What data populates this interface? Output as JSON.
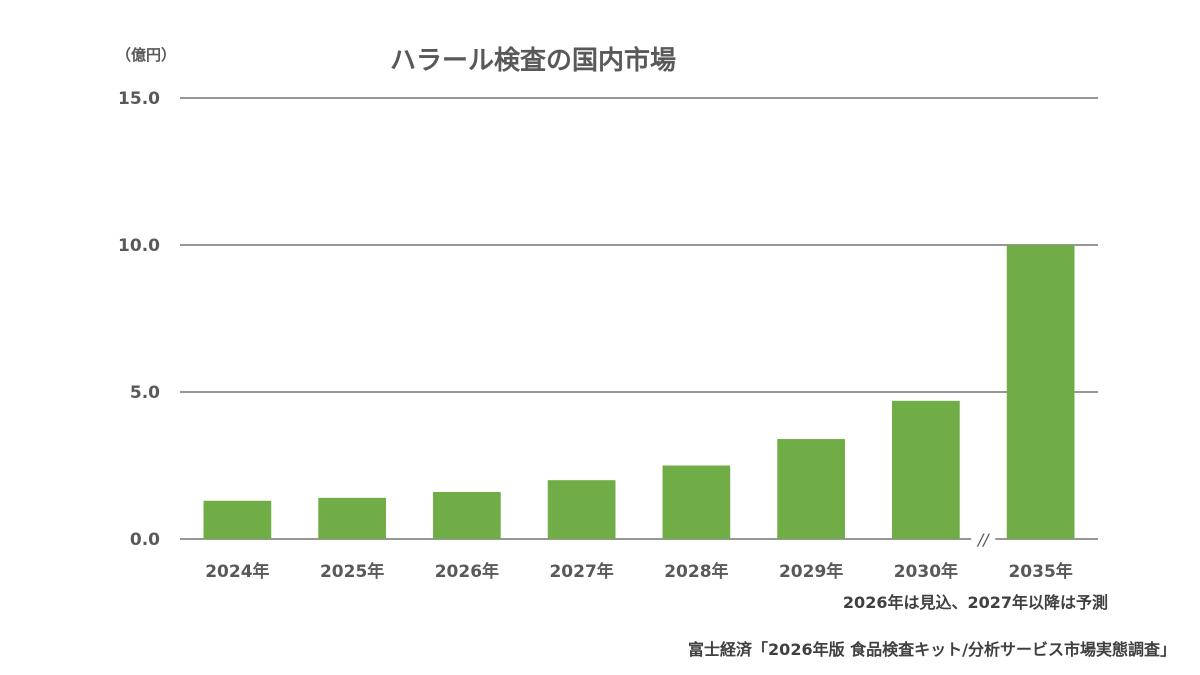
{
  "chart_data": {
    "type": "bar",
    "title": "ハラール検査の国内市場",
    "ylabel": "（億円）",
    "categories": [
      "2024年",
      "2025年",
      "2026年",
      "2027年",
      "2028年",
      "2029年",
      "2030年",
      "2035年"
    ],
    "series": [
      {
        "values": [
          1.3,
          1.4,
          1.6,
          2.0,
          2.5,
          3.4,
          4.7,
          10.0
        ]
      }
    ],
    "ylim": [
      0,
      15
    ],
    "yticks": [
      "0.0",
      "5.0",
      "10.0",
      "15.0"
    ],
    "grid": true,
    "axis_break_between": [
      "2030年",
      "2035年"
    ],
    "axis_break_mark": "//",
    "bar_color": "#70AD47",
    "gridline_color": "#595959"
  },
  "footnote": "2026年は見込、2027年以降は予測",
  "source": "富士経済「2026年版 食品検査キット/分析サービス市場実態調査」"
}
